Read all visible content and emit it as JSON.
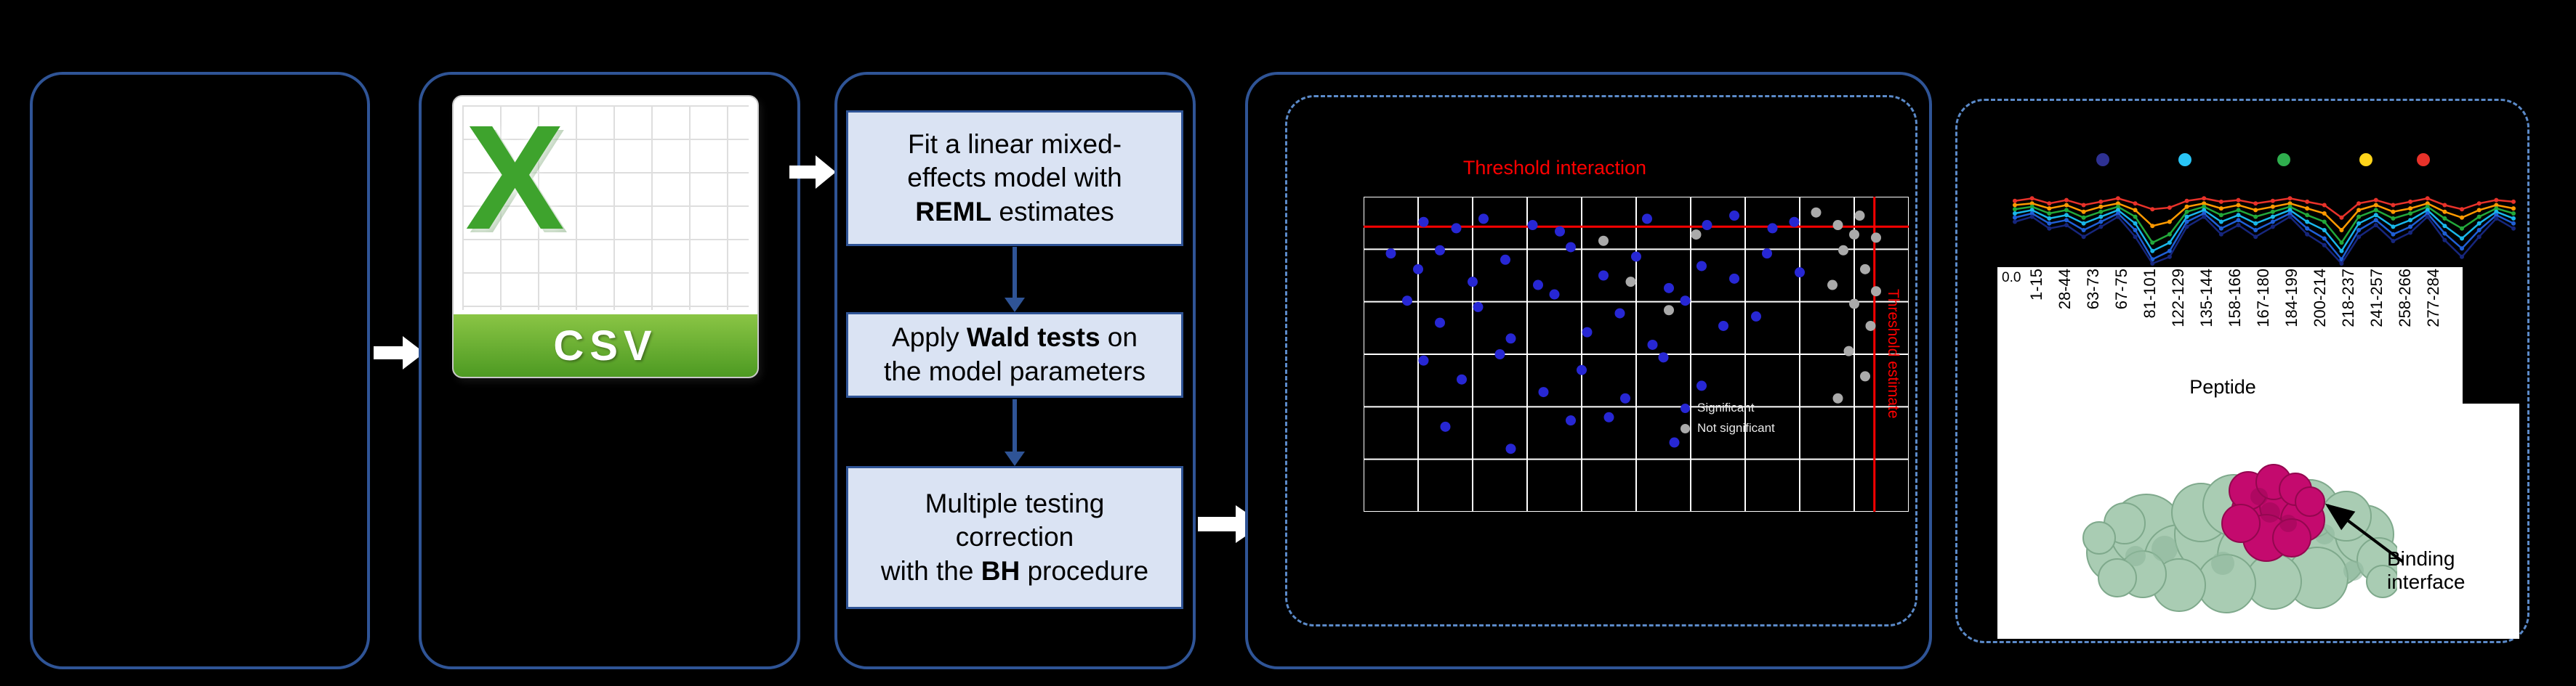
{
  "colors": {
    "box_border": "#2f5496",
    "dashed_border": "#5b8ac9",
    "step_fill": "#dae3f3",
    "threshold_red": "#ff0000",
    "csv_green": "#4d9a22",
    "significant_blue": "#2727d4",
    "nonsignificant_gray": "#aaaaaa",
    "protein_green": "#a9ccb3",
    "binding_magenta": "#c40a6e"
  },
  "panels": {
    "panel2": {
      "x_letter": "X",
      "csv_label": "CSV"
    },
    "panel3": {
      "steps": [
        {
          "l1": "Fit a linear mixed-",
          "l2": "effects model with",
          "l3b": "REML",
          "l3s": " estimates"
        },
        {
          "l1a": "Apply ",
          "l1b": "Wald tests",
          "l1c": " on",
          "l2": "the model parameters"
        },
        {
          "l1": "Multiple testing",
          "l2": "correction",
          "l3a": "with the ",
          "l3b": "BH",
          "l3c": " procedure"
        }
      ]
    }
  },
  "protein": {
    "binding_line1": "Binding",
    "binding_line2": "interface"
  },
  "chart_data": [
    {
      "type": "scatter",
      "title": "Threshold interaction",
      "title_color": "#ff0000",
      "grid": {
        "cols": 10,
        "rows": 6,
        "color": "#ffffff"
      },
      "threshold": {
        "h_frac": 0.095,
        "v_frac": 0.937,
        "color": "#ff0000",
        "v_label": "Threshold estimate"
      },
      "legend": [
        {
          "label": "Significant",
          "color": "#2727d4"
        },
        {
          "label": "Not significant",
          "color": "#aaaaaa"
        }
      ],
      "series": [
        {
          "name": "significant",
          "color": "#2727d4",
          "points_pct": [
            [
              11,
              8
            ],
            [
              17,
              10
            ],
            [
              22,
              7
            ],
            [
              31,
              9
            ],
            [
              36,
              11
            ],
            [
              52,
              7
            ],
            [
              63,
              9
            ],
            [
              68,
              6
            ],
            [
              75,
              10
            ],
            [
              79,
              8
            ],
            [
              5,
              18
            ],
            [
              10,
              23
            ],
            [
              14,
              17
            ],
            [
              20,
              27
            ],
            [
              26,
              20
            ],
            [
              32,
              28
            ],
            [
              38,
              16
            ],
            [
              44,
              25
            ],
            [
              50,
              19
            ],
            [
              56,
              29
            ],
            [
              62,
              22
            ],
            [
              68,
              26
            ],
            [
              74,
              18
            ],
            [
              80,
              24
            ],
            [
              8,
              33
            ],
            [
              14,
              40
            ],
            [
              21,
              35
            ],
            [
              27,
              45
            ],
            [
              35,
              31
            ],
            [
              41,
              43
            ],
            [
              47,
              37
            ],
            [
              53,
              47
            ],
            [
              59,
              33
            ],
            [
              66,
              41
            ],
            [
              72,
              38
            ],
            [
              11,
              52
            ],
            [
              18,
              58
            ],
            [
              25,
              50
            ],
            [
              33,
              62
            ],
            [
              40,
              55
            ],
            [
              48,
              64
            ],
            [
              55,
              51
            ],
            [
              15,
              73
            ],
            [
              27,
              80
            ],
            [
              38,
              71
            ],
            [
              57,
              78
            ],
            [
              45,
              70
            ],
            [
              62,
              60
            ]
          ]
        },
        {
          "name": "not-significant",
          "color": "#aaaaaa",
          "points_pct": [
            [
              83,
              5
            ],
            [
              87,
              9
            ],
            [
              91,
              6
            ],
            [
              94,
              13
            ],
            [
              88,
              17
            ],
            [
              92,
              23
            ],
            [
              86,
              28
            ],
            [
              90,
              34
            ],
            [
              93,
              41
            ],
            [
              89,
              49
            ],
            [
              92,
              57
            ],
            [
              87,
              64
            ],
            [
              90,
              12
            ],
            [
              94,
              30
            ],
            [
              44,
              14
            ],
            [
              49,
              27
            ],
            [
              56,
              36
            ],
            [
              61,
              12
            ]
          ]
        }
      ]
    },
    {
      "type": "line",
      "ytick_label": "0.0",
      "xlabel": "Peptide",
      "tick_labels": [
        "1-15",
        "28-44",
        "63-73",
        "67-75",
        "81-101",
        "122-129",
        "135-144",
        "158-166",
        "167-180",
        "184-199",
        "200-214",
        "218-237",
        "241-257",
        "258-266",
        "277-284"
      ],
      "marker_colors": [
        "#2e3192",
        "#29c5f6",
        "#2fae4e",
        "#ffd41a",
        "#e8322a"
      ],
      "series": [
        {
          "name": "line-red",
          "color": "#e8322a",
          "y_frac": [
            0.25,
            0.22,
            0.28,
            0.24,
            0.3,
            0.26,
            0.22,
            0.28,
            0.35,
            0.33,
            0.25,
            0.22,
            0.26,
            0.24,
            0.28,
            0.25,
            0.22,
            0.26,
            0.3,
            0.45,
            0.28,
            0.24,
            0.3,
            0.26,
            0.22,
            0.3,
            0.35,
            0.28,
            0.24,
            0.26
          ]
        },
        {
          "name": "line-orange",
          "color": "#ff9a00",
          "y_frac": [
            0.3,
            0.28,
            0.34,
            0.3,
            0.38,
            0.32,
            0.28,
            0.36,
            0.55,
            0.5,
            0.32,
            0.28,
            0.34,
            0.3,
            0.36,
            0.32,
            0.28,
            0.34,
            0.4,
            0.6,
            0.36,
            0.3,
            0.38,
            0.34,
            0.28,
            0.38,
            0.45,
            0.36,
            0.3,
            0.34
          ]
        },
        {
          "name": "line-green",
          "color": "#22a83a",
          "y_frac": [
            0.35,
            0.32,
            0.4,
            0.36,
            0.45,
            0.38,
            0.32,
            0.44,
            0.75,
            0.65,
            0.38,
            0.32,
            0.42,
            0.36,
            0.44,
            0.38,
            0.32,
            0.42,
            0.5,
            0.75,
            0.44,
            0.36,
            0.46,
            0.4,
            0.32,
            0.46,
            0.58,
            0.44,
            0.34,
            0.4
          ]
        },
        {
          "name": "line-cyan",
          "color": "#19b7ea",
          "y_frac": [
            0.4,
            0.36,
            0.46,
            0.42,
            0.52,
            0.44,
            0.36,
            0.52,
            0.85,
            0.75,
            0.44,
            0.36,
            0.5,
            0.42,
            0.52,
            0.44,
            0.36,
            0.5,
            0.6,
            0.85,
            0.52,
            0.42,
            0.56,
            0.48,
            0.36,
            0.55,
            0.7,
            0.52,
            0.38,
            0.46
          ]
        },
        {
          "name": "line-blue",
          "color": "#1f5fd6",
          "y_frac": [
            0.45,
            0.4,
            0.52,
            0.48,
            0.6,
            0.5,
            0.4,
            0.6,
            0.95,
            0.85,
            0.5,
            0.4,
            0.58,
            0.48,
            0.6,
            0.5,
            0.4,
            0.58,
            0.7,
            0.95,
            0.6,
            0.48,
            0.65,
            0.56,
            0.4,
            0.64,
            0.82,
            0.6,
            0.42,
            0.52
          ]
        },
        {
          "name": "line-navy",
          "color": "#16267d",
          "y_frac": [
            0.5,
            0.44,
            0.58,
            0.54,
            0.68,
            0.56,
            0.44,
            0.68,
            1.0,
            0.92,
            0.56,
            0.44,
            0.65,
            0.54,
            0.68,
            0.56,
            0.44,
            0.65,
            0.78,
            1.0,
            0.68,
            0.54,
            0.73,
            0.63,
            0.44,
            0.72,
            0.92,
            0.68,
            0.46,
            0.58
          ]
        }
      ]
    }
  ]
}
